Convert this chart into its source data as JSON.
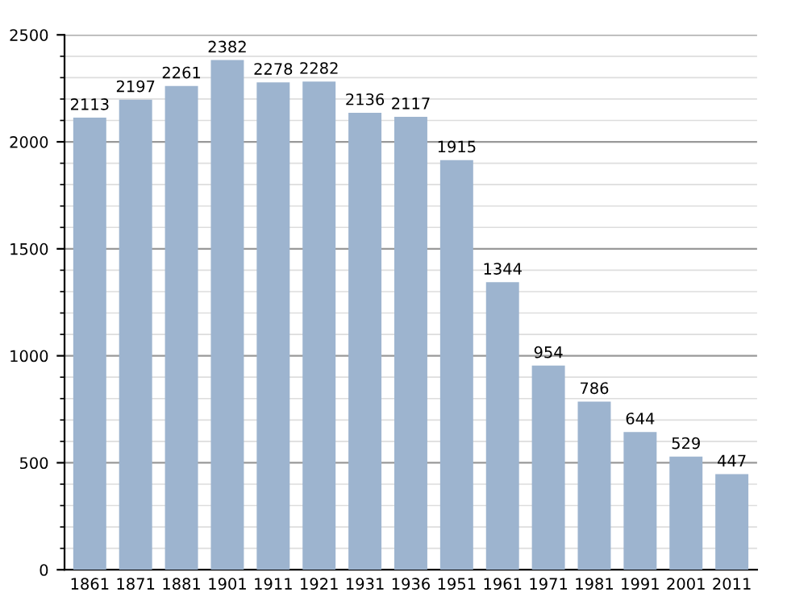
{
  "chart_data": {
    "type": "bar",
    "categories": [
      "1861",
      "1871",
      "1881",
      "1901",
      "1911",
      "1921",
      "1931",
      "1936",
      "1951",
      "1961",
      "1971",
      "1981",
      "1991",
      "2001",
      "2011"
    ],
    "values": [
      2113,
      2197,
      2261,
      2382,
      2278,
      2282,
      2136,
      2117,
      1915,
      1344,
      954,
      786,
      644,
      529,
      447
    ],
    "color": "#9db4cf",
    "data_labels": true,
    "ylim": [
      0,
      2500
    ],
    "yticks": [
      0,
      500,
      1000,
      1500,
      2000,
      2500
    ],
    "grid": "y",
    "legend": false
  }
}
